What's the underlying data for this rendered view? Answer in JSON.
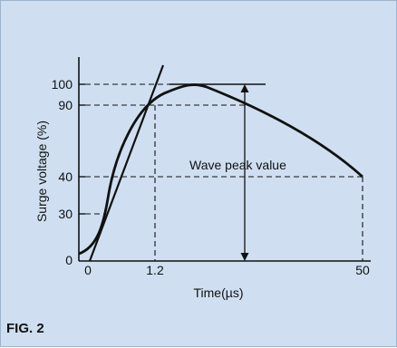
{
  "figure": {
    "caption": "FIG. 2",
    "background_color": "#cfdff1",
    "border_color": "#9db4cc",
    "line_color": "#111111"
  },
  "chart_data": {
    "type": "line",
    "xlabel": "Time(µs)",
    "ylabel": "Surge voltage (%)",
    "x_ticks": [
      "0",
      "1.2",
      "50"
    ],
    "y_ticks": [
      "0",
      "30",
      "40",
      "90",
      "100"
    ],
    "annotation": "Wave peak value",
    "series": [
      {
        "values": [
          0,
          30,
          90,
          100,
          40
        ]
      }
    ]
  }
}
